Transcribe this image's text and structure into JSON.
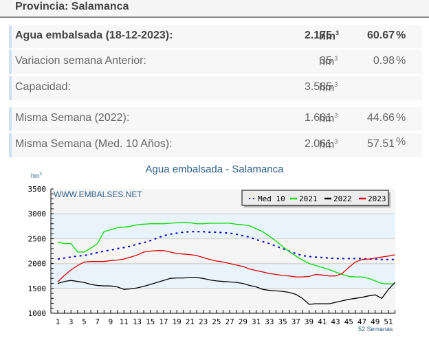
{
  "header": {
    "title": "Provincia: Salamanca"
  },
  "stats": [
    {
      "label": "Agua embalsada (18-12-2023):",
      "value": "2.175",
      "unit": "hm",
      "unit_sup": "3",
      "pct": "60.67",
      "pct_sign": "%"
    },
    {
      "label": "Variacion semana Anterior:",
      "value": "35",
      "unit": "hm",
      "unit_sup": "3",
      "pct": "0.98",
      "pct_sign": "%"
    },
    {
      "label": "Capacidad:",
      "value": "3.585",
      "unit": "hm",
      "unit_sup": "3",
      "pct": "",
      "pct_sign": ""
    },
    {
      "label": "Misma Semana (2022):",
      "value": "1.601",
      "unit": "hm",
      "unit_sup": "3",
      "pct": "44.66",
      "pct_sign": "%"
    },
    {
      "label": "Misma Semana (Med. 10 Años):",
      "value": "2.061",
      "unit": "hm",
      "unit_sup": "3",
      "pct": "57.51",
      "pct_sign": "%"
    }
  ],
  "chart": {
    "title": "Agua embalsada - Salamanca",
    "y_unit": "hm",
    "y_unit_sup": "3",
    "watermark": "WWW.EMBALSES.NET",
    "x_footer": "52 Semanas",
    "legend": [
      {
        "label": "Med 10",
        "color": "#0000cc",
        "style": "dotted"
      },
      {
        "label": "2021",
        "color": "#00dd00",
        "style": "solid"
      },
      {
        "label": "2022",
        "color": "#000000",
        "style": "solid"
      },
      {
        "label": "2023",
        "color": "#dd0000",
        "style": "solid"
      }
    ],
    "y_ticks": [
      "3500",
      "3000",
      "2500",
      "2000",
      "1500",
      "1000"
    ],
    "x_ticks": [
      "1",
      "3",
      "5",
      "7",
      "9",
      "11",
      "13",
      "15",
      "17",
      "19",
      "21",
      "23",
      "25",
      "27",
      "29",
      "31",
      "33",
      "35",
      "37",
      "39",
      "41",
      "43",
      "45",
      "47",
      "49",
      "51"
    ]
  },
  "chart_data": {
    "type": "line",
    "title": "Agua embalsada - Salamanca",
    "xlabel": "52 Semanas",
    "ylabel": "hm3",
    "ylim": [
      1000,
      3500
    ],
    "xlim": [
      1,
      52
    ],
    "grid": true,
    "legend_position": "top-right",
    "x": [
      1,
      2,
      3,
      4,
      5,
      6,
      7,
      8,
      9,
      10,
      11,
      12,
      13,
      14,
      15,
      16,
      17,
      18,
      19,
      20,
      21,
      22,
      23,
      24,
      25,
      26,
      27,
      28,
      29,
      30,
      31,
      32,
      33,
      34,
      35,
      36,
      37,
      38,
      39,
      40,
      41,
      42,
      43,
      44,
      45,
      46,
      47,
      48,
      49,
      50,
      51,
      52
    ],
    "series": [
      {
        "name": "Med 10",
        "color": "#0000cc",
        "style": "dotted",
        "values": [
          2090,
          2110,
          2130,
          2150,
          2160,
          2190,
          2220,
          2250,
          2270,
          2300,
          2320,
          2350,
          2390,
          2420,
          2460,
          2510,
          2560,
          2590,
          2610,
          2630,
          2640,
          2640,
          2640,
          2630,
          2630,
          2620,
          2610,
          2590,
          2560,
          2530,
          2480,
          2440,
          2400,
          2350,
          2300,
          2250,
          2200,
          2160,
          2140,
          2130,
          2120,
          2110,
          2100,
          2100,
          2100,
          2100,
          2100,
          2090,
          2090,
          2080,
          2080,
          2080
        ]
      },
      {
        "name": "2021",
        "color": "#00dd00",
        "style": "solid",
        "values": [
          2430,
          2400,
          2400,
          2230,
          2230,
          2310,
          2400,
          2640,
          2680,
          2720,
          2730,
          2750,
          2780,
          2790,
          2800,
          2800,
          2800,
          2810,
          2820,
          2830,
          2820,
          2800,
          2800,
          2810,
          2810,
          2810,
          2810,
          2790,
          2780,
          2760,
          2700,
          2640,
          2550,
          2450,
          2340,
          2240,
          2150,
          2070,
          2000,
          1960,
          1920,
          1880,
          1830,
          1780,
          1740,
          1730,
          1730,
          1700,
          1650,
          1600,
          1590,
          1590
        ]
      },
      {
        "name": "2022",
        "color": "#000000",
        "style": "solid",
        "values": [
          1600,
          1640,
          1660,
          1640,
          1620,
          1580,
          1560,
          1550,
          1550,
          1530,
          1480,
          1490,
          1510,
          1540,
          1580,
          1620,
          1660,
          1700,
          1710,
          1710,
          1720,
          1720,
          1700,
          1670,
          1650,
          1640,
          1630,
          1620,
          1600,
          1560,
          1530,
          1480,
          1460,
          1450,
          1440,
          1420,
          1380,
          1300,
          1180,
          1190,
          1190,
          1190,
          1220,
          1250,
          1280,
          1300,
          1320,
          1350,
          1370,
          1300,
          1480,
          1620
        ]
      },
      {
        "name": "2023",
        "color": "#dd0000",
        "style": "solid",
        "values": [
          1630,
          1760,
          1870,
          1960,
          2030,
          2040,
          2040,
          2040,
          2060,
          2070,
          2090,
          2130,
          2170,
          2230,
          2250,
          2260,
          2260,
          2230,
          2200,
          2190,
          2180,
          2160,
          2120,
          2080,
          2050,
          2030,
          2000,
          1970,
          1940,
          1890,
          1860,
          1830,
          1800,
          1780,
          1760,
          1750,
          1730,
          1730,
          1740,
          1780,
          1770,
          1750,
          1750,
          1800,
          1920,
          2030,
          2080,
          2090,
          2110,
          2130,
          2150,
          2175
        ]
      }
    ]
  }
}
